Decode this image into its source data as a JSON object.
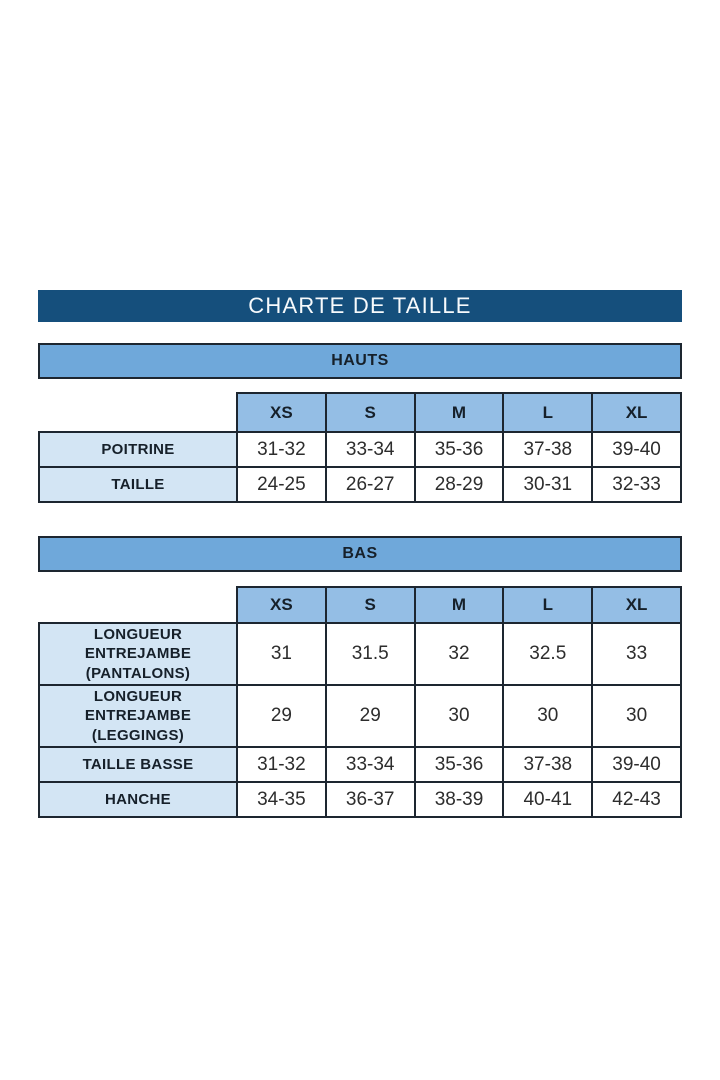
{
  "page": {
    "title": "CHARTE DE TAILLE"
  },
  "colors": {
    "navy": "#154f7c",
    "bar_blue": "#6fa8da",
    "header_blue": "#94bee5",
    "label_blue": "#d3e5f4",
    "border": "#1d2630",
    "dark_text": "#16202a",
    "value_text": "#2d2d2d",
    "title_text": "#f7fafc"
  },
  "hauts": {
    "section_label": "HAUTS",
    "sizes": [
      "XS",
      "S",
      "M",
      "L",
      "XL"
    ],
    "rows": [
      {
        "label": "POITRINE",
        "values": [
          "31-32",
          "33-34",
          "35-36",
          "37-38",
          "39-40"
        ]
      },
      {
        "label": "TAILLE",
        "values": [
          "24-25",
          "26-27",
          "28-29",
          "30-31",
          "32-33"
        ]
      }
    ]
  },
  "bas": {
    "section_label": "BAS",
    "sizes": [
      "XS",
      "S",
      "M",
      "L",
      "XL"
    ],
    "rows": [
      {
        "label": "LONGUEUR\nENTREJAMBE\n(PANTALONS)",
        "values": [
          "31",
          "31.5",
          "32",
          "32.5",
          "33"
        ]
      },
      {
        "label": "LONGUEUR\nENTREJAMBE\n(LEGGINGS)",
        "values": [
          "29",
          "29",
          "30",
          "30",
          "30"
        ]
      },
      {
        "label": "TAILLE BASSE",
        "values": [
          "31-32",
          "33-34",
          "35-36",
          "37-38",
          "39-40"
        ]
      },
      {
        "label": "HANCHE",
        "values": [
          "34-35",
          "36-37",
          "38-39",
          "40-41",
          "42-43"
        ]
      }
    ]
  },
  "chart_data": [
    {
      "type": "table",
      "title": "HAUTS",
      "columns": [
        "",
        "XS",
        "S",
        "M",
        "L",
        "XL"
      ],
      "rows": [
        [
          "POITRINE",
          "31-32",
          "33-34",
          "35-36",
          "37-38",
          "39-40"
        ],
        [
          "TAILLE",
          "24-25",
          "26-27",
          "28-29",
          "30-31",
          "32-33"
        ]
      ]
    },
    {
      "type": "table",
      "title": "BAS",
      "columns": [
        "",
        "XS",
        "S",
        "M",
        "L",
        "XL"
      ],
      "rows": [
        [
          "LONGUEUR ENTREJAMBE (PANTALONS)",
          "31",
          "31.5",
          "32",
          "32.5",
          "33"
        ],
        [
          "LONGUEUR ENTREJAMBE (LEGGINGS)",
          "29",
          "29",
          "30",
          "30",
          "30"
        ],
        [
          "TAILLE BASSE",
          "31-32",
          "33-34",
          "35-36",
          "37-38",
          "39-40"
        ],
        [
          "HANCHE",
          "34-35",
          "36-37",
          "38-39",
          "40-41",
          "42-43"
        ]
      ]
    }
  ]
}
